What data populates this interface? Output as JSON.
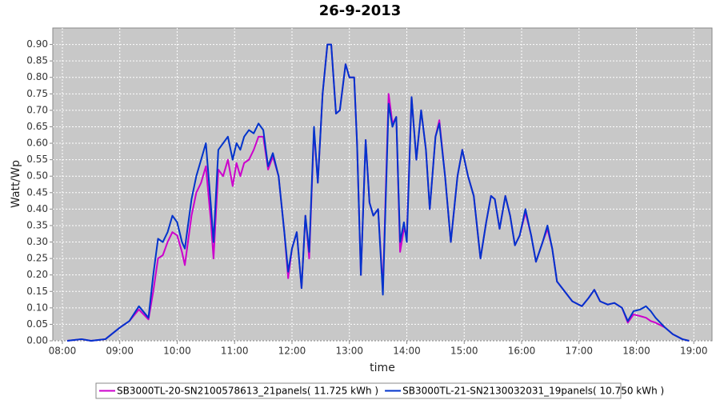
{
  "chart_data": {
    "type": "line",
    "title": "26-9-2013",
    "x_label": "time",
    "y_label": "Watt/Wp",
    "grid": true,
    "legend": "bottom",
    "xlim": [
      "07:50",
      "19:19"
    ],
    "xticks": [
      "08:00",
      "09:00",
      "10:00",
      "11:00",
      "12:00",
      "13:00",
      "14:00",
      "15:00",
      "16:00",
      "17:00",
      "18:00",
      "19:00"
    ],
    "ylim": [
      0,
      0.95
    ],
    "yticks": [
      {
        "value": 0,
        "label": "0.00"
      },
      {
        "value": 0.05,
        "label": "0.05"
      },
      {
        "value": 0.1,
        "label": "0.10"
      },
      {
        "value": 0.15,
        "label": "0.15"
      },
      {
        "value": 0.2,
        "label": "0.20"
      },
      {
        "value": 0.25,
        "label": "0.25"
      },
      {
        "value": 0.3,
        "label": "0.30"
      },
      {
        "value": 0.35,
        "label": "0.35"
      },
      {
        "value": 0.4,
        "label": "0.40"
      },
      {
        "value": 0.45,
        "label": "0.45"
      },
      {
        "value": 0.5,
        "label": "0.50"
      },
      {
        "value": 0.55,
        "label": "0.55"
      },
      {
        "value": 0.6,
        "label": "0.60"
      },
      {
        "value": 0.65,
        "label": "0.65"
      },
      {
        "value": 0.7,
        "label": "0.70"
      },
      {
        "value": 0.75,
        "label": "0.75"
      },
      {
        "value": 0.8,
        "label": "0.80"
      },
      {
        "value": 0.85,
        "label": "0.85"
      },
      {
        "value": 0.9,
        "label": "0.90"
      }
    ],
    "x": [
      "08:05",
      "08:20",
      "08:30",
      "08:45",
      "09:00",
      "09:10",
      "09:20",
      "09:30",
      "09:35",
      "09:40",
      "09:45",
      "09:50",
      "09:55",
      "10:00",
      "10:05",
      "10:08",
      "10:15",
      "10:20",
      "10:25",
      "10:30",
      "10:35",
      "10:38",
      "10:43",
      "10:48",
      "10:53",
      "10:58",
      "11:02",
      "11:06",
      "11:10",
      "11:15",
      "11:20",
      "11:25",
      "11:30",
      "11:35",
      "11:40",
      "11:46",
      "11:52",
      "11:56",
      "12:00",
      "12:05",
      "12:10",
      "12:14",
      "12:18",
      "12:23",
      "12:27",
      "12:32",
      "12:37",
      "12:41",
      "12:46",
      "12:50",
      "12:56",
      "13:00",
      "13:05",
      "13:08",
      "13:12",
      "13:17",
      "13:21",
      "13:25",
      "13:30",
      "13:35",
      "13:41",
      "13:45",
      "13:49",
      "13:53",
      "13:57",
      "14:00",
      "14:05",
      "14:10",
      "14:15",
      "14:20",
      "14:24",
      "14:30",
      "14:34",
      "14:40",
      "14:46",
      "14:53",
      "14:58",
      "15:04",
      "15:10",
      "15:17",
      "15:23",
      "15:28",
      "15:32",
      "15:37",
      "15:43",
      "15:48",
      "15:53",
      "15:58",
      "16:04",
      "16:10",
      "16:15",
      "16:22",
      "16:27",
      "16:32",
      "16:37",
      "16:45",
      "16:53",
      "17:03",
      "17:10",
      "17:16",
      "17:22",
      "17:30",
      "17:37",
      "17:45",
      "17:51",
      "17:57",
      "18:04",
      "18:10",
      "18:15",
      "18:20",
      "18:30",
      "18:38",
      "18:48",
      "18:55"
    ],
    "series": [
      {
        "name": "SB3000TL-20-SN2100578613_21panels( 11.725 kWh )",
        "color": "#cc00cc",
        "values": [
          0,
          0.005,
          0,
          0.005,
          0.04,
          0.06,
          0.095,
          0.065,
          0.15,
          0.25,
          0.26,
          0.3,
          0.33,
          0.32,
          0.27,
          0.23,
          0.38,
          0.45,
          0.48,
          0.53,
          0.37,
          0.25,
          0.52,
          0.5,
          0.55,
          0.47,
          0.54,
          0.5,
          0.54,
          0.55,
          0.58,
          0.62,
          0.62,
          0.52,
          0.56,
          0.5,
          0.33,
          0.19,
          0.28,
          0.33,
          0.16,
          0.38,
          0.25,
          0.64,
          0.48,
          0.75,
          0.9,
          0.9,
          0.69,
          0.7,
          0.84,
          0.8,
          0.8,
          0.6,
          0.2,
          0.61,
          0.42,
          0.38,
          0.4,
          0.16,
          0.75,
          0.66,
          0.68,
          0.27,
          0.34,
          0.32,
          0.74,
          0.55,
          0.7,
          0.58,
          0.4,
          0.62,
          0.67,
          0.5,
          0.3,
          0.5,
          0.58,
          0.5,
          0.44,
          0.25,
          0.36,
          0.44,
          0.43,
          0.34,
          0.44,
          0.38,
          0.29,
          0.32,
          0.39,
          0.32,
          0.24,
          0.3,
          0.34,
          0.28,
          0.18,
          0.15,
          0.12,
          0.105,
          0.13,
          0.155,
          0.12,
          0.11,
          0.115,
          0.1,
          0.055,
          0.08,
          0.075,
          0.07,
          0.06,
          0.055,
          0.04,
          0.02,
          0.005,
          0
        ]
      },
      {
        "name": "SB3000TL-21-SN2130032031_19panels( 10.750 kWh )",
        "color": "#0033cc",
        "values": [
          0,
          0.005,
          0,
          0.005,
          0.04,
          0.06,
          0.105,
          0.07,
          0.2,
          0.31,
          0.3,
          0.33,
          0.38,
          0.36,
          0.3,
          0.28,
          0.43,
          0.5,
          0.55,
          0.6,
          0.42,
          0.3,
          0.58,
          0.6,
          0.62,
          0.55,
          0.6,
          0.58,
          0.62,
          0.64,
          0.63,
          0.66,
          0.64,
          0.53,
          0.57,
          0.5,
          0.33,
          0.21,
          0.28,
          0.33,
          0.16,
          0.38,
          0.27,
          0.65,
          0.48,
          0.75,
          0.9,
          0.9,
          0.69,
          0.7,
          0.84,
          0.8,
          0.8,
          0.6,
          0.2,
          0.61,
          0.42,
          0.38,
          0.4,
          0.14,
          0.72,
          0.65,
          0.68,
          0.3,
          0.36,
          0.3,
          0.74,
          0.55,
          0.7,
          0.58,
          0.4,
          0.62,
          0.66,
          0.5,
          0.3,
          0.5,
          0.58,
          0.5,
          0.44,
          0.25,
          0.36,
          0.44,
          0.43,
          0.34,
          0.44,
          0.38,
          0.29,
          0.32,
          0.4,
          0.32,
          0.24,
          0.3,
          0.35,
          0.28,
          0.18,
          0.15,
          0.12,
          0.105,
          0.13,
          0.155,
          0.12,
          0.11,
          0.115,
          0.1,
          0.06,
          0.09,
          0.095,
          0.105,
          0.09,
          0.07,
          0.04,
          0.02,
          0.005,
          0
        ]
      }
    ]
  }
}
